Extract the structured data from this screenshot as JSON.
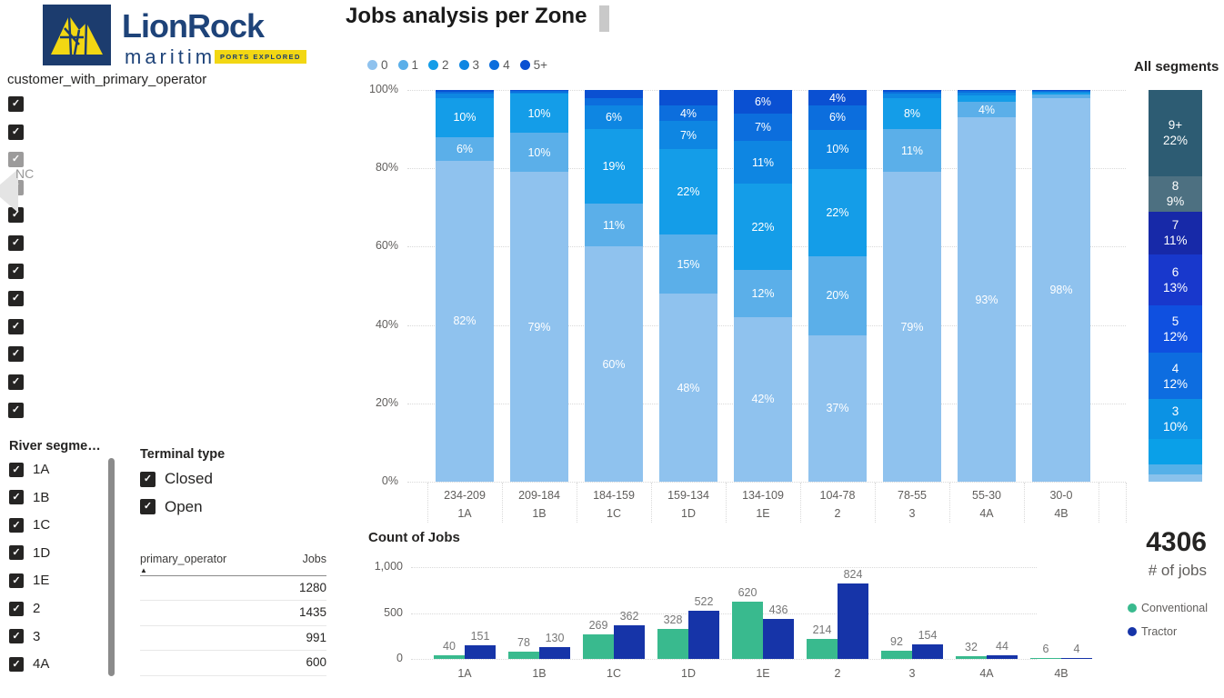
{
  "logo": {
    "brand": "LionRock",
    "sub": "maritime",
    "badge": "PORTS EXPLORED"
  },
  "customer_filter": {
    "label": "customer_with_primary_operator",
    "overlay_text": "NC",
    "items": [
      {
        "label": "",
        "checked": true,
        "faded": false
      },
      {
        "label": "",
        "checked": true,
        "faded": false
      },
      {
        "label": "",
        "checked": true,
        "faded": true
      },
      {
        "label": "",
        "checked": true,
        "faded": true
      },
      {
        "label": "",
        "checked": true,
        "faded": false
      },
      {
        "label": "",
        "checked": true,
        "faded": false
      },
      {
        "label": "",
        "checked": true,
        "faded": false
      },
      {
        "label": "",
        "checked": true,
        "faded": false
      },
      {
        "label": "",
        "checked": true,
        "faded": false
      },
      {
        "label": "",
        "checked": true,
        "faded": false
      },
      {
        "label": "",
        "checked": true,
        "faded": false
      },
      {
        "label": "",
        "checked": true,
        "faded": false
      }
    ]
  },
  "river_filter": {
    "label": "River segme…",
    "items": [
      "1A",
      "1B",
      "1C",
      "1D",
      "1E",
      "2",
      "3",
      "4A"
    ]
  },
  "terminal_filter": {
    "label": "Terminal type",
    "items": [
      "Closed",
      "Open"
    ]
  },
  "operator_table": {
    "columns": [
      "primary_operator",
      "Jobs"
    ],
    "sort_icon": "▲",
    "rows": [
      {
        "operator": "",
        "jobs": "1280"
      },
      {
        "operator": "",
        "jobs": "1435"
      },
      {
        "operator": "",
        "jobs": "991"
      },
      {
        "operator": "",
        "jobs": "600"
      }
    ]
  },
  "kpi": {
    "value": "4306",
    "label": "# of jobs"
  },
  "chart_data": [
    {
      "id": "jobs_per_zone",
      "type": "bar",
      "subtype": "stacked-100",
      "title": "Jobs analysis per Zone",
      "legend": [
        "0",
        "1",
        "2",
        "3",
        "4",
        "5+"
      ],
      "colors": [
        "#8fc2ee",
        "#5bafe9",
        "#149de8",
        "#0e86e2",
        "#0c6edd",
        "#0a50d2"
      ],
      "yticks": [
        "0%",
        "20%",
        "40%",
        "60%",
        "80%",
        "100%"
      ],
      "grid": "dotted",
      "bars": [
        {
          "zone": "234-209",
          "segment": "1A",
          "values": [
            82,
            6,
            10,
            1,
            0.5,
            0.5
          ],
          "labels": [
            "82%",
            "6%",
            "10%",
            "",
            "",
            ""
          ]
        },
        {
          "zone": "209-184",
          "segment": "1B",
          "values": [
            79,
            10,
            10,
            0.4,
            0.3,
            0.3
          ],
          "labels": [
            "79%",
            "10%",
            "10%",
            "",
            "",
            ""
          ]
        },
        {
          "zone": "184-159",
          "segment": "1C",
          "values": [
            60,
            11,
            19,
            6,
            2,
            2
          ],
          "labels": [
            "60%",
            "11%",
            "19%",
            "6%",
            "",
            ""
          ]
        },
        {
          "zone": "159-134",
          "segment": "1D",
          "values": [
            48,
            15,
            22,
            7,
            4,
            4
          ],
          "labels": [
            "48%",
            "15%",
            "22%",
            "7%",
            "4%",
            ""
          ]
        },
        {
          "zone": "134-109",
          "segment": "1E",
          "values": [
            42,
            12,
            22,
            11,
            7,
            6
          ],
          "labels": [
            "42%",
            "12%",
            "22%",
            "11%",
            "7%",
            "6%"
          ]
        },
        {
          "zone": "104-78",
          "segment": "2",
          "values": [
            37,
            20,
            22,
            10,
            6,
            4
          ],
          "labels": [
            "37%",
            "20%",
            "22%",
            "10%",
            "6%",
            "4%"
          ]
        },
        {
          "zone": "78-55",
          "segment": "3",
          "values": [
            79,
            11,
            8,
            1,
            0.5,
            0.5
          ],
          "labels": [
            "79%",
            "11%",
            "8%",
            "",
            "",
            ""
          ]
        },
        {
          "zone": "55-30",
          "segment": "4A",
          "values": [
            93,
            4,
            1.6,
            0.7,
            0.4,
            0.3
          ],
          "labels": [
            "93%",
            "4%",
            "",
            "",
            "",
            ""
          ]
        },
        {
          "zone": "30-0",
          "segment": "4B",
          "values": [
            98,
            0.8,
            0.5,
            0.3,
            0.2,
            0.2
          ],
          "labels": [
            "98%",
            "",
            "",
            "",
            "",
            ""
          ]
        }
      ]
    },
    {
      "id": "all_segments",
      "type": "bar",
      "subtype": "stacked-100-single",
      "title": "All segments",
      "segments": [
        {
          "name": "9+",
          "pct": 22,
          "pct_label": "22%",
          "color": "#2d5c73",
          "show_label": true
        },
        {
          "name": "8",
          "pct": 9,
          "pct_label": "9%",
          "color": "#4d7081",
          "show_label": true
        },
        {
          "name": "7",
          "pct": 11,
          "pct_label": "11%",
          "color": "#1729a8",
          "show_label": true
        },
        {
          "name": "6",
          "pct": 13,
          "pct_label": "13%",
          "color": "#1838cc",
          "show_label": true
        },
        {
          "name": "5",
          "pct": 12,
          "pct_label": "12%",
          "color": "#0f50e0",
          "show_label": true
        },
        {
          "name": "4",
          "pct": 12,
          "pct_label": "12%",
          "color": "#0d6de0",
          "show_label": true
        },
        {
          "name": "3",
          "pct": 10,
          "pct_label": "10%",
          "color": "#0b92e4",
          "show_label": true
        },
        {
          "name": "2",
          "pct": 6.5,
          "pct_label": "",
          "color": "#0aa0e8",
          "show_label": false
        },
        {
          "name": "1",
          "pct": 2.6,
          "pct_label": "",
          "color": "#55b0e8",
          "show_label": false
        },
        {
          "name": "0",
          "pct": 1.9,
          "pct_label": "",
          "color": "#8ac2ec",
          "show_label": false
        }
      ]
    },
    {
      "id": "count_of_jobs",
      "type": "bar",
      "subtype": "grouped",
      "title": "Count of Jobs",
      "categories": [
        "1A",
        "1B",
        "1C",
        "1D",
        "1E",
        "2",
        "3",
        "4A",
        "4B"
      ],
      "series": [
        {
          "name": "Conventional",
          "color": "#39ba8e",
          "values": [
            40,
            78,
            269,
            328,
            620,
            214,
            92,
            32,
            6
          ]
        },
        {
          "name": "Tractor",
          "color": "#1634a8",
          "values": [
            151,
            130,
            362,
            522,
            436,
            824,
            154,
            44,
            4
          ]
        }
      ],
      "ymax": 1000,
      "yticks": [
        {
          "label": "1,000",
          "value": 1000
        },
        {
          "label": "500",
          "value": 500
        },
        {
          "label": "0",
          "value": 0
        }
      ],
      "grid": "dotted",
      "legend_position": "right"
    }
  ]
}
